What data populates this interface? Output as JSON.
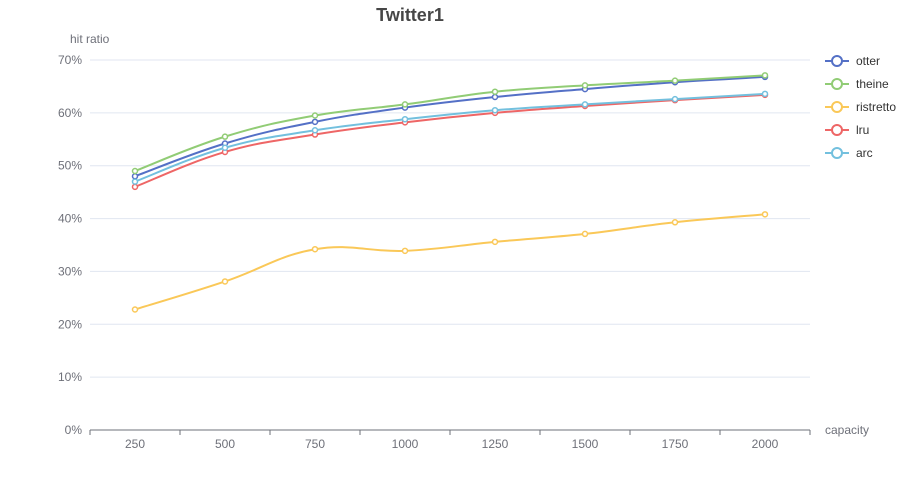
{
  "chart_data": {
    "type": "line",
    "title": "Twitter1",
    "xlabel": "capacity",
    "ylabel": "hit ratio",
    "categories": [
      "250",
      "500",
      "750",
      "1000",
      "1250",
      "1500",
      "1750",
      "2000"
    ],
    "y_ticks": [
      "0%",
      "10%",
      "20%",
      "30%",
      "40%",
      "50%",
      "60%",
      "70%"
    ],
    "ylim": [
      0,
      70
    ],
    "y_unit": "%",
    "grid": true,
    "legend_position": "right",
    "series": [
      {
        "name": "otter",
        "color": "#5470c6",
        "values": [
          48.0,
          54.2,
          58.3,
          61.0,
          63.0,
          64.5,
          65.8,
          66.8
        ]
      },
      {
        "name": "theine",
        "color": "#91cc75",
        "values": [
          49.0,
          55.5,
          59.5,
          61.6,
          64.0,
          65.2,
          66.1,
          67.1
        ]
      },
      {
        "name": "ristretto",
        "color": "#fac858",
        "values": [
          22.8,
          28.1,
          34.2,
          33.9,
          35.6,
          37.1,
          39.3,
          40.8
        ]
      },
      {
        "name": "lru",
        "color": "#ee6666",
        "values": [
          46.0,
          52.6,
          55.9,
          58.2,
          60.0,
          61.3,
          62.4,
          63.4
        ]
      },
      {
        "name": "arc",
        "color": "#73c0de",
        "values": [
          47.0,
          53.4,
          56.7,
          58.8,
          60.5,
          61.6,
          62.6,
          63.6
        ]
      }
    ]
  }
}
